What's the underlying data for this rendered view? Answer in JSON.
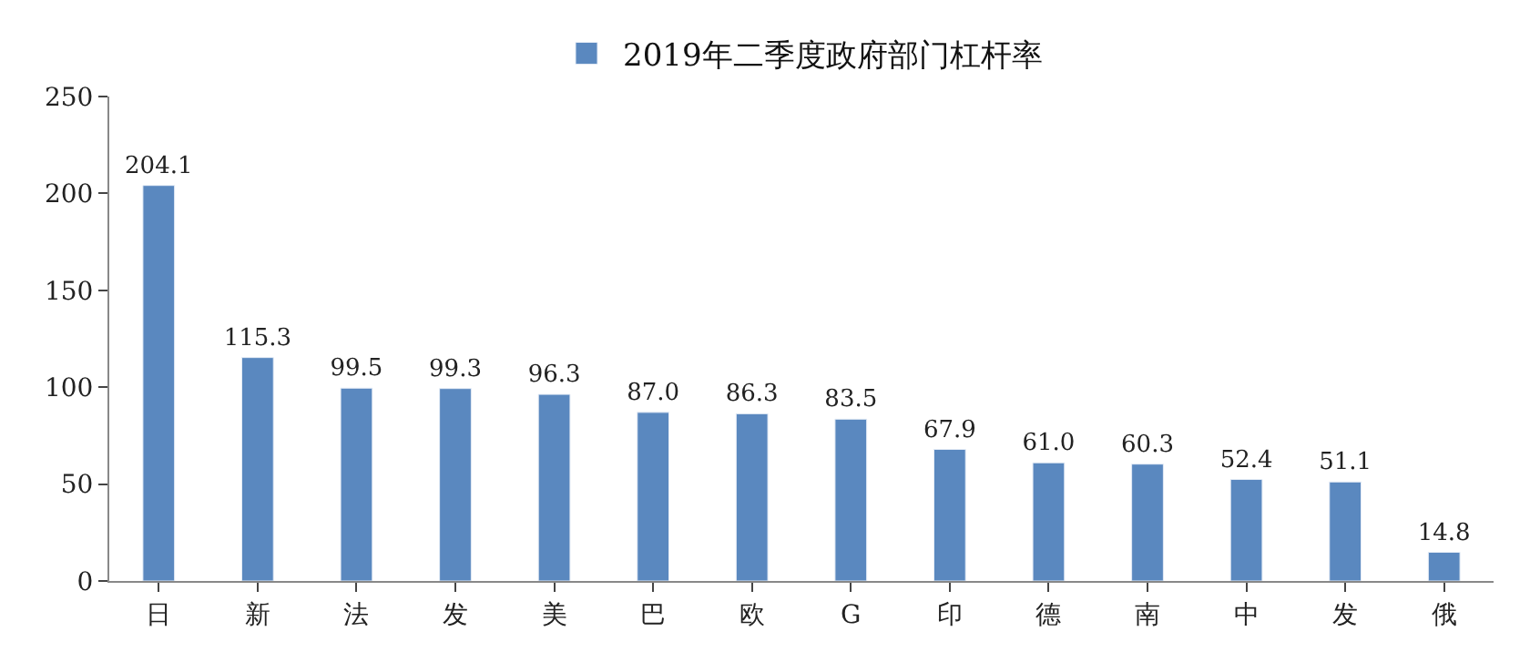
{
  "chart_data": {
    "type": "bar",
    "categories": [
      "日",
      "新",
      "法",
      "发",
      "美",
      "巴",
      "欧",
      "G",
      "印",
      "德",
      "南",
      "中",
      "发",
      "俄"
    ],
    "series": [
      {
        "name": "2019年二季度政府部门杠杆率",
        "color": "#5a88bf",
        "values": [
          204.1,
          115.3,
          99.5,
          99.3,
          96.3,
          87.0,
          86.3,
          83.5,
          67.9,
          61.0,
          60.3,
          52.4,
          51.1,
          14.8
        ]
      }
    ],
    "value_labels": [
      "204.1",
      "115.3",
      "99.5",
      "99.3",
      "96.3",
      "87.0",
      "86.3",
      "83.5",
      "67.9",
      "61.0",
      "60.3",
      "52.4",
      "51.1",
      "14.8"
    ],
    "ylim": [
      0,
      250
    ],
    "yticks": [
      0,
      50,
      100,
      150,
      200,
      250
    ],
    "legend": "top"
  }
}
